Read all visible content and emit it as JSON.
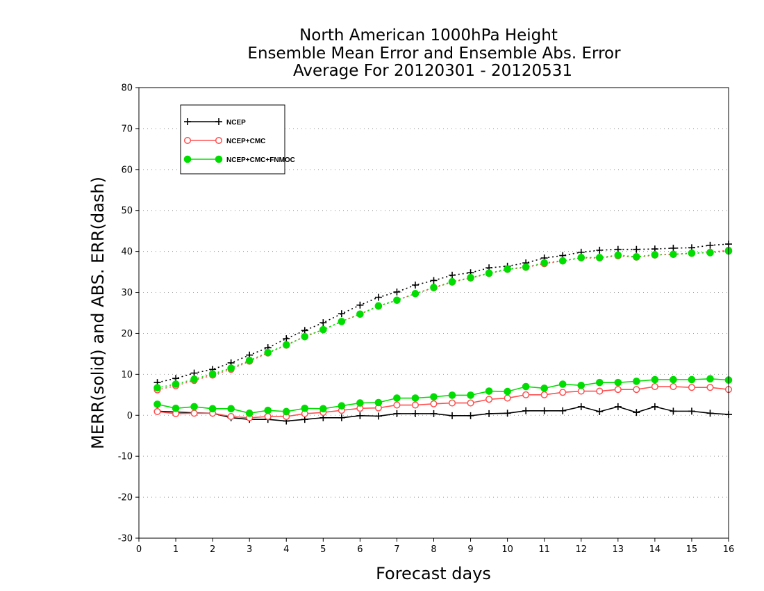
{
  "chart_data": {
    "type": "line",
    "title": [
      "North American 1000hPa Height",
      "Ensemble Mean Error and Ensemble Abs. Error",
      "Average For 20120301 - 20120531"
    ],
    "xlabel": "Forecast days",
    "ylabel": "MERR(solid) and ABS. ERR(dash)",
    "xlim": [
      0,
      16
    ],
    "ylim": [
      -30,
      80
    ],
    "x_ticks": [
      0,
      1,
      2,
      3,
      4,
      5,
      6,
      7,
      8,
      9,
      10,
      11,
      12,
      13,
      14,
      15,
      16
    ],
    "y_ticks": [
      -30,
      -20,
      -10,
      0,
      10,
      20,
      30,
      40,
      50,
      60,
      70,
      80
    ],
    "grid": "horizontal dotted",
    "legend_position": "top-left",
    "x": [
      0.5,
      1,
      1.5,
      2,
      2.5,
      3,
      3.5,
      4,
      4.5,
      5,
      5.5,
      6,
      6.5,
      7,
      7.5,
      8,
      8.5,
      9,
      9.5,
      10,
      10.5,
      11,
      11.5,
      12,
      12.5,
      13,
      13.5,
      14,
      14.5,
      15,
      15.5,
      16
    ],
    "series": [
      {
        "name": "NCEP",
        "color": "#000000",
        "marker": "plus",
        "merr": [
          1.0,
          0.8,
          0.6,
          0.5,
          -0.6,
          -1.0,
          -1.0,
          -1.4,
          -1.0,
          -0.6,
          -0.6,
          -0.1,
          -0.2,
          0.4,
          0.4,
          0.4,
          -0.1,
          -0.1,
          0.4,
          0.5,
          1.1,
          1.1,
          1.1,
          2.1,
          0.9,
          2.1,
          0.7,
          2.1,
          1.0,
          1.0,
          0.5,
          0.2
        ],
        "abs_err": [
          8.0,
          9.0,
          10.3,
          11.2,
          12.8,
          14.7,
          16.5,
          18.7,
          20.7,
          22.6,
          24.8,
          26.9,
          28.8,
          30.1,
          31.8,
          32.9,
          34.2,
          34.8,
          36.0,
          36.4,
          37.2,
          38.4,
          39.0,
          39.8,
          40.3,
          40.5,
          40.5,
          40.6,
          40.8,
          40.9,
          41.5,
          41.8
        ]
      },
      {
        "name": "NCEP+CMC",
        "color": "#ff5050",
        "marker": "open-circle",
        "merr": [
          0.9,
          0.4,
          0.5,
          0.5,
          -0.3,
          -0.6,
          -0.3,
          -0.3,
          0.4,
          0.7,
          1.2,
          1.7,
          1.8,
          2.5,
          2.5,
          2.8,
          3.0,
          3.0,
          3.9,
          4.2,
          5.0,
          5.0,
          5.6,
          5.9,
          5.9,
          6.3,
          6.3,
          7.0,
          7.0,
          6.8,
          6.8,
          6.3
        ],
        "abs_err": [
          6.2,
          7.2,
          8.5,
          9.8,
          11.2,
          13.2,
          15.2,
          17.1,
          19.2,
          20.9,
          22.9,
          24.7,
          26.6,
          28.1,
          29.7,
          31.1,
          32.5,
          33.5,
          34.6,
          35.6,
          36.1,
          37.0,
          37.7,
          38.4,
          38.4,
          38.9,
          38.6,
          39.1,
          39.3,
          39.5,
          39.8,
          40.3
        ]
      },
      {
        "name": "NCEP+CMC+FNMOC",
        "color": "#00dd00",
        "marker": "filled-circle",
        "merr": [
          2.7,
          1.7,
          2.1,
          1.6,
          1.6,
          0.5,
          1.2,
          0.9,
          1.7,
          1.6,
          2.3,
          3.0,
          3.1,
          4.2,
          4.2,
          4.5,
          4.9,
          4.9,
          5.9,
          5.8,
          7.0,
          6.6,
          7.6,
          7.3,
          8.0,
          8.0,
          8.3,
          8.7,
          8.7,
          8.7,
          8.9,
          8.6
        ],
        "abs_err": [
          6.7,
          7.6,
          8.8,
          10.1,
          11.5,
          13.4,
          15.3,
          17.2,
          19.2,
          20.9,
          22.9,
          24.7,
          26.7,
          28.1,
          29.7,
          31.2,
          32.6,
          33.6,
          34.7,
          35.7,
          36.2,
          37.2,
          37.7,
          38.5,
          38.5,
          39.1,
          38.7,
          39.2,
          39.3,
          39.6,
          39.7,
          40.1
        ]
      }
    ]
  }
}
